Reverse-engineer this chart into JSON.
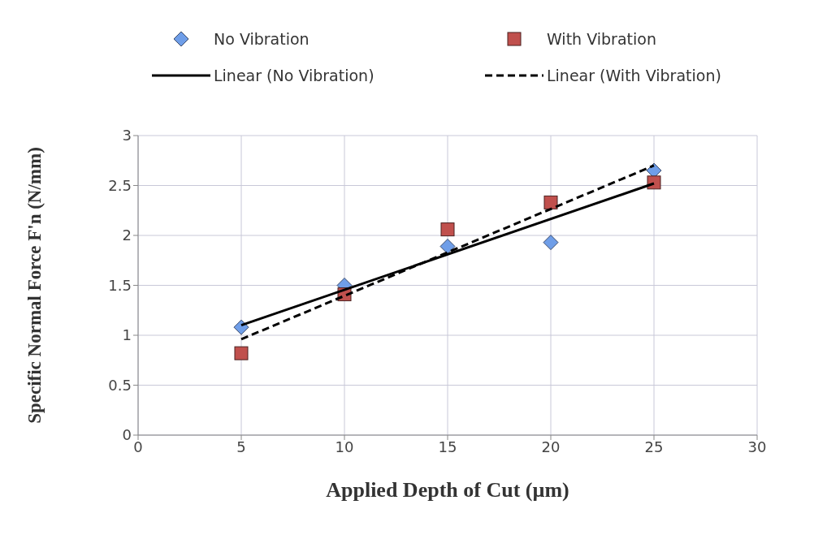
{
  "chart_data": {
    "type": "scatter",
    "xlabel": "Applied Depth of Cut (µm)",
    "ylabel": "Specific Normal Force F'n (N/mm)",
    "xlim": [
      0,
      30
    ],
    "xticks": [
      0,
      5,
      10,
      15,
      20,
      25,
      30
    ],
    "ylim": [
      0,
      3
    ],
    "yticks": [
      0,
      0.5,
      1,
      1.5,
      2,
      2.5,
      3
    ],
    "grid": true,
    "legend": "top",
    "series": [
      {
        "name": "No Vibration",
        "marker": "diamond",
        "color": "#6f9ee8",
        "x": [
          5,
          10,
          15,
          20,
          25
        ],
        "values": [
          1.08,
          1.5,
          1.89,
          1.93,
          2.65
        ]
      },
      {
        "name": "With Vibration",
        "marker": "square",
        "color": "#c0504d",
        "x": [
          5,
          10,
          15,
          20,
          25
        ],
        "values": [
          0.82,
          1.41,
          2.06,
          2.33,
          2.53
        ]
      },
      {
        "name": "Linear (No Vibration)",
        "type": "line",
        "line_style": "solid",
        "color": "#000000",
        "x": [
          5,
          25
        ],
        "values": [
          1.1,
          2.52
        ]
      },
      {
        "name": "Linear (With Vibration)",
        "type": "line",
        "line_style": "dashed",
        "color": "#000000",
        "x": [
          5,
          25
        ],
        "values": [
          0.96,
          2.7
        ]
      }
    ]
  }
}
